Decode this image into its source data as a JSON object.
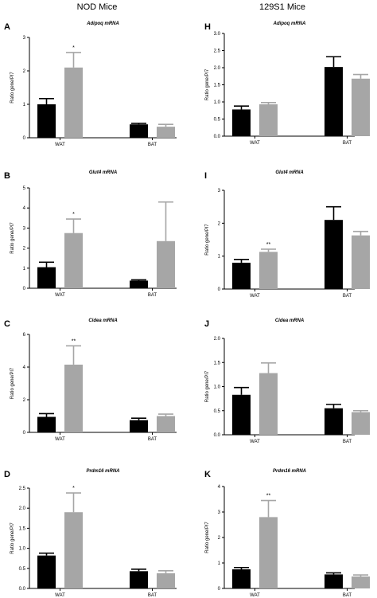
{
  "column_headers": [
    "NOD Mice",
    "129S1 Mice"
  ],
  "colors": {
    "group1": "#000000",
    "group2": "#a6a6a6"
  },
  "chart_data": [
    {
      "type": "bar",
      "panel": "A",
      "title": "Adipoq mRNA",
      "ylabel": "Ratio gene/Pl7",
      "categories": [
        "WAT",
        "BAT"
      ],
      "ylim": [
        0,
        3
      ],
      "yticks": [
        "0",
        "1",
        "2",
        "3"
      ],
      "series": [
        {
          "values": [
            1.0,
            0.4
          ],
          "errors": [
            0.17,
            0.03
          ]
        },
        {
          "values": [
            2.1,
            0.33
          ],
          "errors": [
            0.45,
            0.07
          ]
        }
      ],
      "significance": [
        {
          "category": "WAT",
          "series": 1,
          "label": "*"
        }
      ]
    },
    {
      "type": "bar",
      "panel": "B",
      "title": "Glut4 mRNA",
      "ylabel": "Ratio gene/Pl7",
      "categories": [
        "WAT",
        "BAT"
      ],
      "ylim": [
        0,
        5
      ],
      "yticks": [
        "0",
        "1",
        "2",
        "3",
        "4",
        "5"
      ],
      "series": [
        {
          "values": [
            1.05,
            0.38
          ],
          "errors": [
            0.25,
            0.04
          ]
        },
        {
          "values": [
            2.75,
            2.35
          ],
          "errors": [
            0.7,
            1.95
          ]
        }
      ],
      "significance": [
        {
          "category": "WAT",
          "series": 1,
          "label": "*"
        }
      ]
    },
    {
      "type": "bar",
      "panel": "C",
      "title": "Cidea mRNA",
      "ylabel": "Ratio gene/Pl7",
      "categories": [
        "WAT",
        "BAT"
      ],
      "ylim": [
        0,
        6
      ],
      "yticks": [
        "0",
        "2",
        "4",
        "6"
      ],
      "series": [
        {
          "values": [
            0.95,
            0.75
          ],
          "errors": [
            0.2,
            0.12
          ]
        },
        {
          "values": [
            4.15,
            1.0
          ],
          "errors": [
            1.15,
            0.12
          ]
        }
      ],
      "significance": [
        {
          "category": "WAT",
          "series": 1,
          "label": "**"
        }
      ]
    },
    {
      "type": "bar",
      "panel": "D",
      "title": "Prdm16 mRNA",
      "ylabel": "Ratio gene/Pl7",
      "categories": [
        "WAT",
        "BAT"
      ],
      "ylim": [
        0,
        2.5
      ],
      "yticks": [
        "0.0",
        "0.5",
        "1.0",
        "1.5",
        "2.0",
        "2.5"
      ],
      "series": [
        {
          "values": [
            0.82,
            0.43
          ],
          "errors": [
            0.06,
            0.05
          ]
        },
        {
          "values": [
            1.9,
            0.38
          ],
          "errors": [
            0.48,
            0.06
          ]
        }
      ],
      "significance": [
        {
          "category": "WAT",
          "series": 1,
          "label": "*"
        }
      ]
    },
    {
      "type": "bar",
      "panel": "H",
      "title": "Adipoq mRNA",
      "ylabel": "Ratio gene/Pl7",
      "categories": [
        "WAT",
        "BAT"
      ],
      "ylim": [
        0,
        3.0
      ],
      "yticks": [
        "0.0",
        "0.5",
        "1.0",
        "1.5",
        "2.0",
        "2.5",
        "3.0"
      ],
      "series": [
        {
          "values": [
            0.78,
            2.02
          ],
          "errors": [
            0.1,
            0.3
          ]
        },
        {
          "values": [
            0.93,
            1.68
          ],
          "errors": [
            0.05,
            0.12
          ]
        }
      ],
      "significance": []
    },
    {
      "type": "bar",
      "panel": "I",
      "title": "Glut4 mRNA",
      "ylabel": "Ratio gene/Pl7",
      "categories": [
        "WAT",
        "BAT"
      ],
      "ylim": [
        0,
        3
      ],
      "yticks": [
        "0",
        "1",
        "2",
        "3"
      ],
      "series": [
        {
          "values": [
            0.8,
            2.1
          ],
          "errors": [
            0.1,
            0.4
          ]
        },
        {
          "values": [
            1.13,
            1.63
          ],
          "errors": [
            0.08,
            0.12
          ]
        }
      ],
      "significance": [
        {
          "category": "WAT",
          "series": 1,
          "label": "**"
        }
      ]
    },
    {
      "type": "bar",
      "panel": "J",
      "title": "Cidea mRNA",
      "ylabel": "Ratio gene/Pl7",
      "categories": [
        "WAT",
        "BAT"
      ],
      "ylim": [
        0,
        2.0
      ],
      "yticks": [
        "0.0",
        "0.5",
        "1.0",
        "1.5",
        "2.0"
      ],
      "series": [
        {
          "values": [
            0.83,
            0.55
          ],
          "errors": [
            0.15,
            0.08
          ]
        },
        {
          "values": [
            1.28,
            0.47
          ],
          "errors": [
            0.21,
            0.03
          ]
        }
      ],
      "significance": []
    },
    {
      "type": "bar",
      "panel": "K",
      "title": "Prdm16 mRNA",
      "ylabel": "Ratio gene/Pl7",
      "categories": [
        "WAT",
        "BAT"
      ],
      "ylim": [
        0,
        4
      ],
      "yticks": [
        "0",
        "1",
        "2",
        "3",
        "4"
      ],
      "series": [
        {
          "values": [
            0.75,
            0.55
          ],
          "errors": [
            0.07,
            0.06
          ]
        },
        {
          "values": [
            2.8,
            0.47
          ],
          "errors": [
            0.65,
            0.06
          ]
        }
      ],
      "significance": [
        {
          "category": "WAT",
          "series": 1,
          "label": "**"
        }
      ]
    }
  ]
}
